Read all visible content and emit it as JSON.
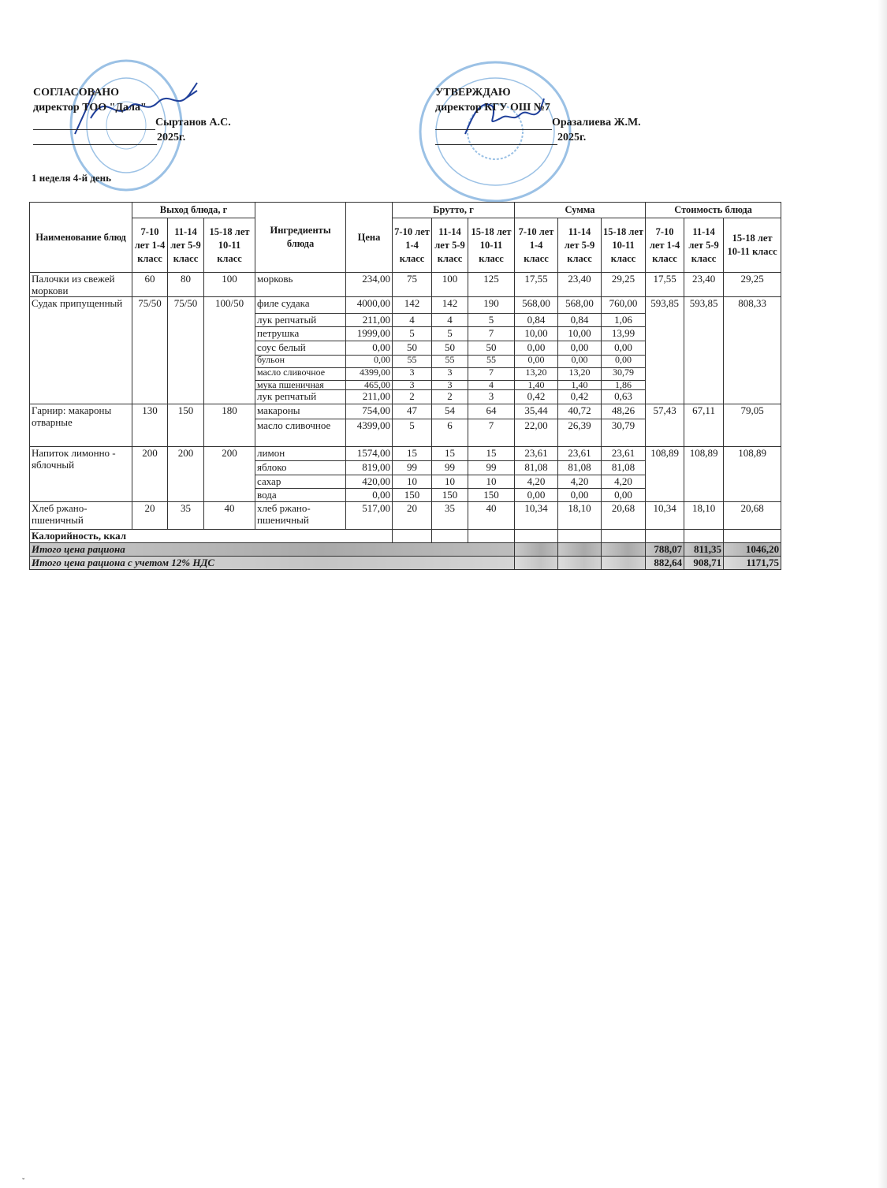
{
  "approval_left": {
    "title": "СОГЛАСОВАНО",
    "position": "директор ТОО \"Дала\"",
    "name": "Сыртанов А.С.",
    "year": "2025г."
  },
  "approval_right": {
    "title": "УТВЕРЖДАЮ",
    "position": "директор КГУ ОШ №7",
    "name": "Оразалиева Ж.М.",
    "year": "2025г."
  },
  "day_label": "1 неделя 4-й день",
  "colors": {
    "stamp": "#4a8fd0",
    "signature": "#1f3f9a",
    "total_row": "#b4b4b4"
  },
  "table": {
    "headers": {
      "dish": "Наименование блюд",
      "yield": "Выход блюда, г",
      "ingredients": "Ингредиенты блюда",
      "price": "Цена",
      "gross": "Брутто, г",
      "sum": "Сумма",
      "cost": "Стоимость блюда",
      "age_groups": [
        "7-10 лет 1-4 класс",
        "11-14 лет 5-9 класс",
        "15-18 лет 10-11 класс"
      ]
    },
    "dishes": [
      {
        "name": "Палочки из свежей моркови",
        "yield": [
          "60",
          "80",
          "100"
        ],
        "cost": [
          "17,55",
          "23,40",
          "29,25"
        ],
        "ingredients": [
          {
            "name": "морковь",
            "price": "234,00",
            "gross": [
              "75",
              "100",
              "125"
            ],
            "sum": [
              "17,55",
              "23,40",
              "29,25"
            ]
          }
        ]
      },
      {
        "name": "Судак припущенный",
        "yield": [
          "75/50",
          "75/50",
          "100/50"
        ],
        "cost": [
          "593,85",
          "593,85",
          "808,33"
        ],
        "ingredients": [
          {
            "name": "филе судака",
            "price": "4000,00",
            "gross": [
              "142",
              "142",
              "190"
            ],
            "sum": [
              "568,00",
              "568,00",
              "760,00"
            ]
          },
          {
            "name": "лук репчатый",
            "price": "211,00",
            "gross": [
              "4",
              "4",
              "5"
            ],
            "sum": [
              "0,84",
              "0,84",
              "1,06"
            ]
          },
          {
            "name": "петрушка",
            "price": "1999,00",
            "gross": [
              "5",
              "5",
              "7"
            ],
            "sum": [
              "10,00",
              "10,00",
              "13,99"
            ]
          },
          {
            "name": "соус белый",
            "price": "0,00",
            "gross": [
              "50",
              "50",
              "50"
            ],
            "sum": [
              "0,00",
              "0,00",
              "0,00"
            ]
          },
          {
            "name": "бульон",
            "price": "0,00",
            "gross": [
              "55",
              "55",
              "55"
            ],
            "sum": [
              "0,00",
              "0,00",
              "0,00"
            ]
          },
          {
            "name": "масло сливочное",
            "price": "4399,00",
            "gross": [
              "3",
              "3",
              "7"
            ],
            "sum": [
              "13,20",
              "13,20",
              "30,79"
            ]
          },
          {
            "name": "мука пшеничная",
            "price": "465,00",
            "gross": [
              "3",
              "3",
              "4"
            ],
            "sum": [
              "1,40",
              "1,40",
              "1,86"
            ]
          },
          {
            "name": "лук репчатый",
            "price": "211,00",
            "gross": [
              "2",
              "2",
              "3"
            ],
            "sum": [
              "0,42",
              "0,42",
              "0,63"
            ]
          }
        ]
      },
      {
        "name": "Гарнир: макароны отварные",
        "yield": [
          "130",
          "150",
          "180"
        ],
        "cost": [
          "57,43",
          "67,11",
          "79,05"
        ],
        "ingredients": [
          {
            "name": "макароны",
            "price": "754,00",
            "gross": [
              "47",
              "54",
              "64"
            ],
            "sum": [
              "35,44",
              "40,72",
              "48,26"
            ]
          },
          {
            "name": "масло сливочное",
            "price": "4399,00",
            "gross": [
              "5",
              "6",
              "7"
            ],
            "sum": [
              "22,00",
              "26,39",
              "30,79"
            ]
          }
        ]
      },
      {
        "name": "Напиток лимонно - яблочный",
        "yield": [
          "200",
          "200",
          "200"
        ],
        "cost": [
          "108,89",
          "108,89",
          "108,89"
        ],
        "ingredients": [
          {
            "name": "лимон",
            "price": "1574,00",
            "gross": [
              "15",
              "15",
              "15"
            ],
            "sum": [
              "23,61",
              "23,61",
              "23,61"
            ]
          },
          {
            "name": "яблоко",
            "price": "819,00",
            "gross": [
              "99",
              "99",
              "99"
            ],
            "sum": [
              "81,08",
              "81,08",
              "81,08"
            ]
          },
          {
            "name": "сахар",
            "price": "420,00",
            "gross": [
              "10",
              "10",
              "10"
            ],
            "sum": [
              "4,20",
              "4,20",
              "4,20"
            ]
          },
          {
            "name": "вода",
            "price": "0,00",
            "gross": [
              "150",
              "150",
              "150"
            ],
            "sum": [
              "0,00",
              "0,00",
              "0,00"
            ]
          }
        ]
      },
      {
        "name": "Хлеб ржано-пшеничный",
        "yield": [
          "20",
          "35",
          "40"
        ],
        "cost": [
          "10,34",
          "18,10",
          "20,68"
        ],
        "ingredients": [
          {
            "name": "хлеб ржано-пшеничный",
            "price": "517,00",
            "gross": [
              "20",
              "35",
              "40"
            ],
            "sum": [
              "10,34",
              "18,10",
              "20,68"
            ]
          }
        ]
      }
    ],
    "calories_label": "Калорийность, ккал",
    "total": {
      "label": "Итого цена рациона",
      "values": [
        "788,07",
        "811,35",
        "1046,20"
      ]
    },
    "total_vat": {
      "label": "Итого цена рациона с учетом 12% НДС",
      "values": [
        "882,64",
        "908,71",
        "1171,75"
      ]
    }
  }
}
